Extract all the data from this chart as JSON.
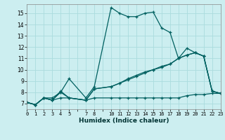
{
  "xlabel": "Humidex (Indice chaleur)",
  "bg_color": "#cceef0",
  "line_color": "#006060",
  "grid_color": "#aadcde",
  "xlim": [
    0,
    23
  ],
  "ylim": [
    6.5,
    15.8
  ],
  "xtick_positions": [
    0,
    1,
    2,
    3,
    4,
    5,
    6,
    7,
    8,
    9,
    10,
    11,
    12,
    13,
    14,
    15,
    16,
    17,
    18,
    19,
    20,
    21,
    22,
    23
  ],
  "xtick_labels": [
    "0",
    "1",
    "2",
    "3",
    "4",
    "5",
    "",
    "7",
    "8",
    "",
    "10",
    "11",
    "12",
    "13",
    "14",
    "15",
    "16",
    "17",
    "18",
    "19",
    "20",
    "21",
    "22",
    "23"
  ],
  "yticks": [
    7,
    8,
    9,
    10,
    11,
    12,
    13,
    14,
    15
  ],
  "series": [
    {
      "x": [
        0,
        1,
        2,
        3,
        4,
        5,
        7,
        8,
        10,
        11,
        12,
        13,
        14,
        15,
        16,
        17,
        18,
        19,
        20,
        21,
        22,
        23
      ],
      "y": [
        7.1,
        6.9,
        7.5,
        7.5,
        8.0,
        9.2,
        7.5,
        8.5,
        15.5,
        15.0,
        14.7,
        14.7,
        15.0,
        15.1,
        13.7,
        13.3,
        11.0,
        11.9,
        11.5,
        11.2,
        8.1,
        7.9
      ]
    },
    {
      "x": [
        0,
        1,
        2,
        3,
        4,
        5,
        7,
        8,
        10,
        11,
        12,
        13,
        14,
        15,
        16,
        17,
        18,
        19,
        20,
        21,
        22,
        23
      ],
      "y": [
        7.1,
        6.9,
        7.5,
        7.3,
        8.0,
        7.5,
        7.3,
        8.3,
        8.5,
        8.8,
        9.2,
        9.5,
        9.8,
        10.0,
        10.2,
        10.5,
        11.0,
        11.3,
        11.5,
        11.2,
        8.1,
        7.9
      ]
    },
    {
      "x": [
        0,
        1,
        2,
        3,
        4,
        5,
        7,
        8,
        10,
        11,
        12,
        13,
        14,
        15,
        16,
        17,
        18,
        19,
        20,
        21,
        22,
        23
      ],
      "y": [
        7.1,
        6.9,
        7.5,
        7.3,
        8.1,
        7.5,
        7.3,
        8.3,
        8.5,
        8.8,
        9.1,
        9.4,
        9.7,
        10.0,
        10.3,
        10.5,
        11.0,
        11.3,
        11.5,
        11.2,
        8.1,
        7.9
      ]
    },
    {
      "x": [
        0,
        1,
        2,
        3,
        4,
        5,
        7,
        8,
        10,
        11,
        12,
        13,
        14,
        15,
        16,
        17,
        18,
        19,
        20,
        21,
        22,
        23
      ],
      "y": [
        7.1,
        6.9,
        7.5,
        7.3,
        7.5,
        7.5,
        7.3,
        7.5,
        7.5,
        7.5,
        7.5,
        7.5,
        7.5,
        7.5,
        7.5,
        7.5,
        7.5,
        7.7,
        7.8,
        7.8,
        7.9,
        7.9
      ]
    }
  ]
}
